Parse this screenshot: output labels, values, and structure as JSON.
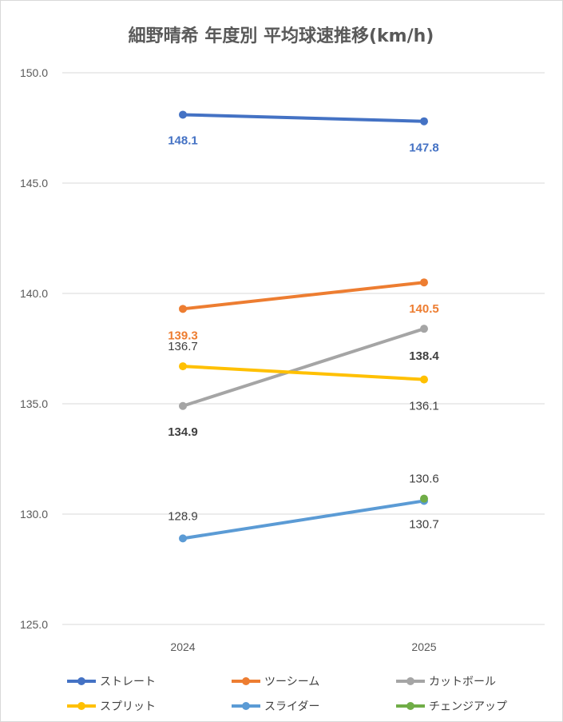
{
  "chart_data": {
    "type": "line",
    "title": "細野晴希 年度別 平均球速推移(km/h)",
    "categories": [
      "2024",
      "2025"
    ],
    "ylim": [
      125.0,
      150.0
    ],
    "yticks": [
      "125.0",
      "130.0",
      "135.0",
      "140.0",
      "145.0",
      "150.0"
    ],
    "grid": true,
    "legend_position": "bottom",
    "series": [
      {
        "name": "ストレート",
        "color": "#4472C4",
        "values": [
          148.1,
          147.8
        ],
        "labels": [
          "148.1",
          "147.8"
        ],
        "label_color": "#4472C4",
        "label_bold": true
      },
      {
        "name": "ツーシーム",
        "color": "#ED7D31",
        "values": [
          139.3,
          140.5
        ],
        "labels": [
          "139.3",
          "140.5"
        ],
        "label_color": "#ED7D31",
        "label_bold": true
      },
      {
        "name": "カットボール",
        "color": "#A5A5A5",
        "values": [
          134.9,
          138.4
        ],
        "labels": [
          "134.9",
          "138.4"
        ],
        "label_color": "#404040",
        "label_bold": true
      },
      {
        "name": "スプリット",
        "color": "#FFC000",
        "values": [
          136.7,
          136.1
        ],
        "labels": [
          "136.7",
          "136.1"
        ],
        "label_color": "#404040",
        "label_bold": false
      },
      {
        "name": "スライダー",
        "color": "#5B9BD5",
        "values": [
          128.9,
          130.6
        ],
        "labels": [
          "128.9",
          "130.6"
        ],
        "label_color": "#404040",
        "label_bold": false
      },
      {
        "name": "チェンジアップ",
        "color": "#70AD47",
        "values": [
          null,
          130.7
        ],
        "labels": [
          null,
          "130.7"
        ],
        "label_color": "#404040",
        "label_bold": false
      }
    ]
  }
}
